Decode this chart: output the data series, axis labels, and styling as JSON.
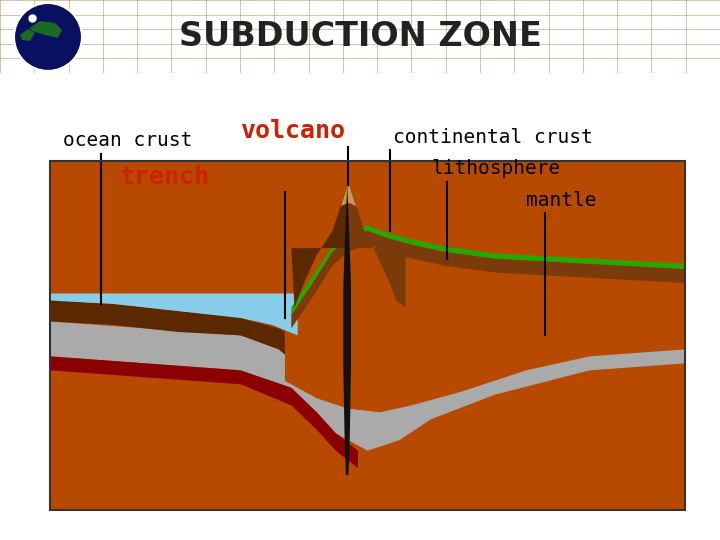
{
  "title": "SUBDUCTION ZONE",
  "title_bg": "#D4B896",
  "title_color": "#222222",
  "title_fontsize": 24,
  "bg_color": "#FFFFFF",
  "colors": {
    "mantle_brown": "#B84A00",
    "dark_brown": "#5C2800",
    "mid_brown": "#7B3A0A",
    "gray_litho": "#AAAAAA",
    "dark_red": "#8B0000",
    "water_blue": "#87CEEB",
    "green_surface": "#22AA00",
    "black": "#111111",
    "tan": "#C8955A"
  },
  "label_volcano": "volcano",
  "label_ocean_crust": "ocean crust",
  "label_trench": "trench",
  "label_cont_crust": "continental crust",
  "label_litho": "lithosphere",
  "label_mantle": "mantle",
  "label_color_red": "#CC2200",
  "label_color_black": "#000000",
  "label_fontsize": 14
}
